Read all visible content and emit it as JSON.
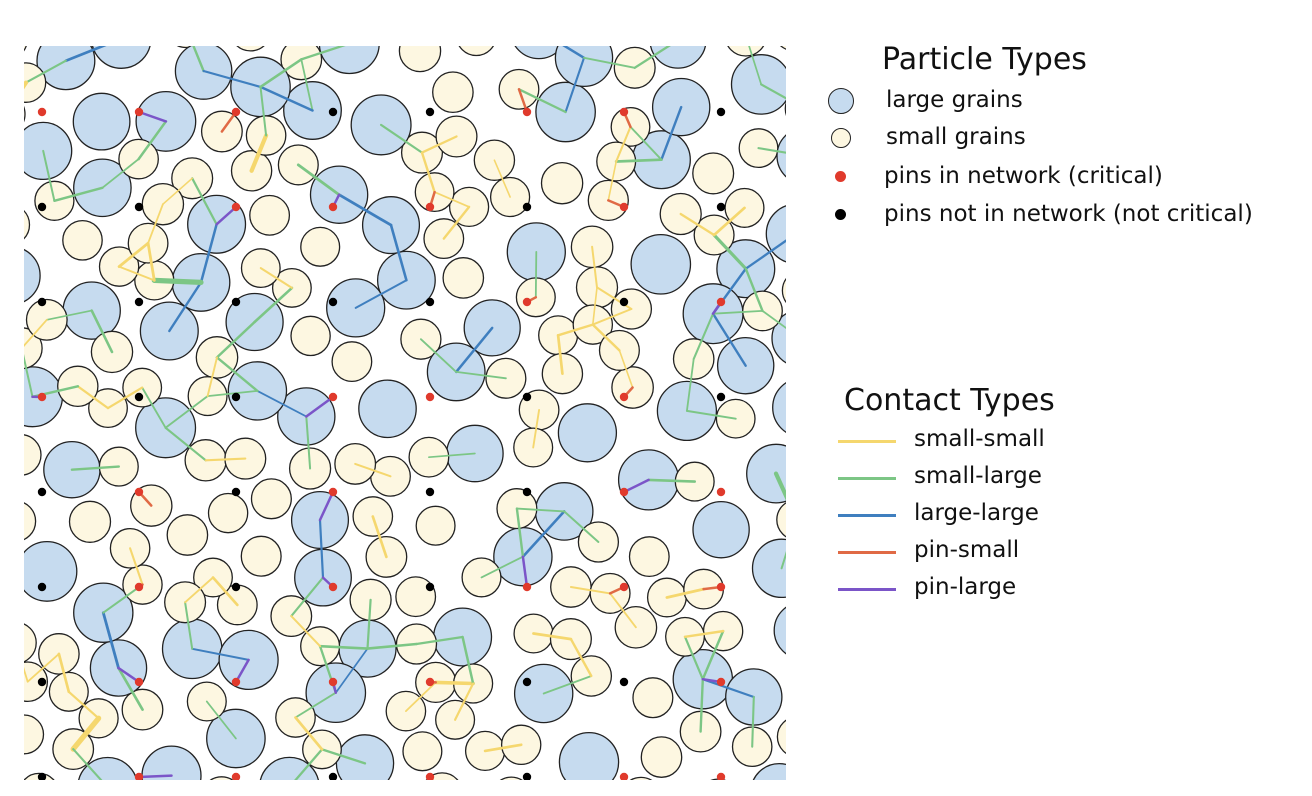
{
  "particle_legend": {
    "title": "Particle Types",
    "entries": [
      {
        "key": "large",
        "label": "large grains",
        "color": "#c6dbef",
        "edge": "#222222"
      },
      {
        "key": "small",
        "label": "small grains",
        "color": "#fdf7e1",
        "edge": "#222222"
      },
      {
        "key": "pin_critical",
        "label": "pins in network (critical)",
        "color": "#e03a2c"
      },
      {
        "key": "pin_noncritical",
        "label": "pins not in network (not critical)",
        "color": "#000000"
      }
    ]
  },
  "contact_legend": {
    "title": "Contact Types",
    "entries": [
      {
        "key": "small-small",
        "label": "small-small",
        "color": "#f5d76e"
      },
      {
        "key": "small-large",
        "label": "small-large",
        "color": "#7cc685"
      },
      {
        "key": "large-large",
        "label": "large-large",
        "color": "#3f7fbf"
      },
      {
        "key": "pin-small",
        "label": "pin-small",
        "color": "#e06a45"
      },
      {
        "key": "pin-large",
        "label": "pin-large",
        "color": "#7b55c8"
      }
    ]
  },
  "colors": {
    "large_fill": "#c6dbef",
    "small_fill": "#fdf7e1",
    "grain_edge": "#222222"
  }
}
